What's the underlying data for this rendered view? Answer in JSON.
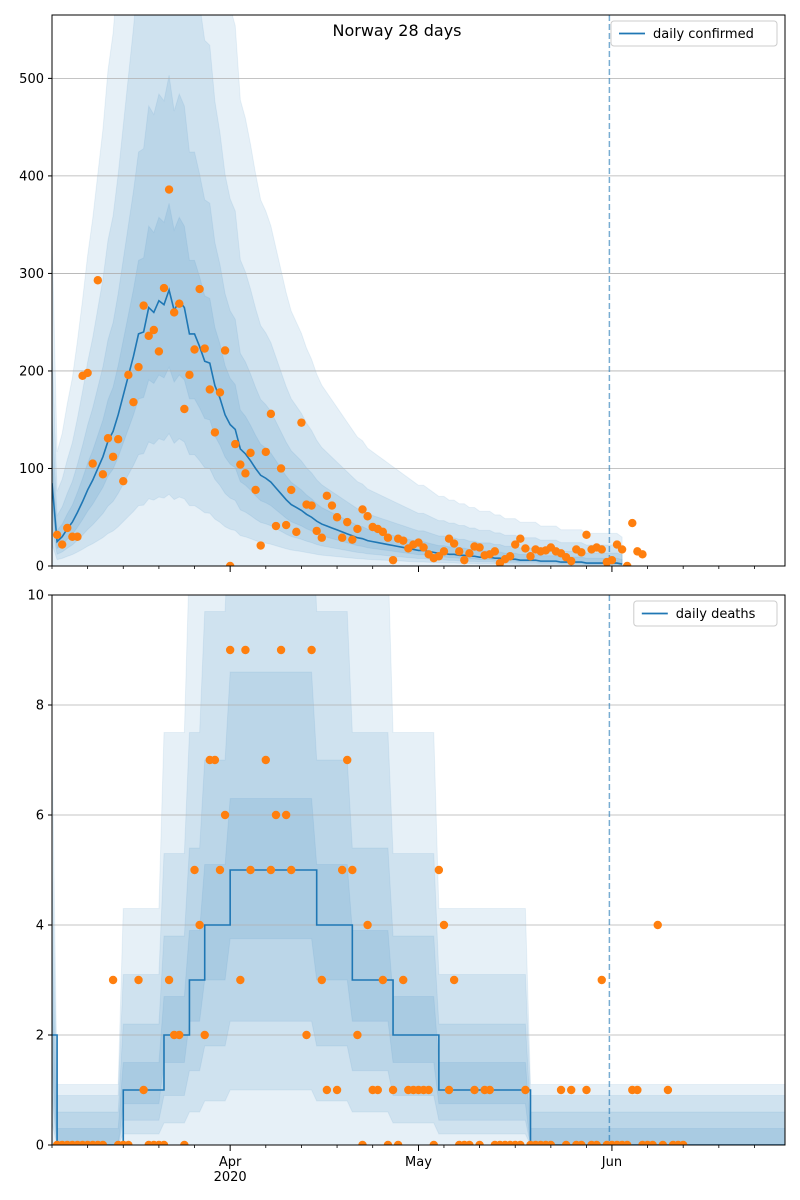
{
  "chart_data": [
    {
      "type": "line",
      "title": "Norway 28 days",
      "xlabel": "",
      "ylabel": "",
      "x_range": [
        0,
        144
      ],
      "ylim": [
        0,
        565
      ],
      "y_ticks": [
        0,
        100,
        200,
        300,
        400,
        500
      ],
      "x_ticks": [
        {
          "x": 35,
          "label": "Apr",
          "sublabel": "2020"
        },
        {
          "x": 72,
          "label": "May",
          "sublabel": ""
        },
        {
          "x": 110,
          "label": "Jun",
          "sublabel": ""
        }
      ],
      "minor_x_ticks": [
        0,
        7,
        14,
        21,
        28,
        42,
        49,
        56,
        63,
        77,
        84,
        91,
        98,
        105,
        117,
        124,
        131,
        138
      ],
      "grid": "horizontal",
      "legend": "top-right",
      "forecast_start_x": 109.5,
      "colors": {
        "line": "#1f77b4",
        "observed": "#ff7f0e",
        "band": "#1f77b4",
        "vline": "#1f77b4"
      },
      "series": [
        {
          "name": "daily confirmed",
          "kind": "line",
          "values": [
            85,
            25,
            30,
            38,
            45,
            55,
            66,
            78,
            88,
            100,
            112,
            128,
            138,
            155,
            175,
            195,
            215,
            238,
            240,
            265,
            260,
            272,
            268,
            283,
            262,
            272,
            265,
            238,
            238,
            225,
            210,
            208,
            185,
            172,
            155,
            145,
            140,
            120,
            115,
            108,
            100,
            93,
            90,
            86,
            80,
            74,
            68,
            63,
            60,
            57,
            53,
            50,
            46,
            43,
            41,
            39,
            37,
            35,
            33,
            31,
            29,
            28,
            26,
            25,
            24,
            23,
            22,
            21,
            20,
            19,
            18,
            17,
            16,
            16,
            15,
            14,
            13,
            13,
            12,
            12,
            11,
            11,
            10,
            10,
            9,
            9,
            9,
            8,
            8,
            7,
            7,
            7,
            6,
            6,
            6,
            6,
            5,
            5,
            5,
            5,
            4,
            4,
            4,
            4,
            4,
            3,
            3,
            3,
            3,
            3,
            3,
            3,
            2
          ]
        },
        {
          "name": "observed",
          "kind": "scatter",
          "values": [
            32,
            22,
            39,
            30,
            30,
            195,
            198,
            105,
            293,
            94,
            131,
            112,
            130,
            87,
            196,
            168,
            204,
            267,
            236,
            242,
            220,
            285,
            386,
            260,
            269,
            161,
            196,
            222,
            284,
            223,
            181,
            137,
            178,
            221,
            0,
            125,
            104,
            95,
            116,
            78,
            21,
            117,
            156,
            41,
            100,
            42,
            78,
            35,
            147,
            63,
            62,
            36,
            29,
            72,
            62,
            50,
            29,
            45,
            27,
            38,
            58,
            51,
            40,
            38,
            35,
            29,
            6,
            28,
            26,
            18,
            22,
            24,
            19,
            12,
            8,
            10,
            15,
            28,
            23,
            15,
            6,
            13,
            20,
            19,
            11,
            12,
            15,
            3,
            7,
            10,
            22,
            28,
            18,
            10,
            17,
            15,
            16,
            19,
            15,
            13,
            9,
            5,
            17,
            14,
            32,
            17,
            19,
            17,
            4,
            6,
            22,
            17,
            0,
            44,
            15,
            12
          ]
        }
      ]
    },
    {
      "type": "line",
      "title": "",
      "xlabel": "",
      "ylabel": "",
      "x_range": [
        0,
        144
      ],
      "ylim": [
        0,
        10
      ],
      "y_ticks": [
        0,
        2,
        4,
        6,
        8,
        10
      ],
      "x_ticks": [
        {
          "x": 35,
          "label": "Apr",
          "sublabel": "2020"
        },
        {
          "x": 72,
          "label": "May",
          "sublabel": ""
        },
        {
          "x": 110,
          "label": "Jun",
          "sublabel": ""
        }
      ],
      "minor_x_ticks": [
        0,
        7,
        14,
        21,
        28,
        42,
        49,
        56,
        63,
        77,
        84,
        91,
        98,
        105,
        117,
        124,
        131,
        138
      ],
      "grid": "horizontal",
      "legend": "top-right",
      "forecast_start_x": 109.5,
      "colors": {
        "line": "#1f77b4",
        "observed": "#ff7f0e",
        "band": "#1f77b4",
        "vline": "#1f77b4"
      },
      "series": [
        {
          "name": "daily deaths",
          "kind": "step",
          "steps": [
            [
              0,
              2
            ],
            [
              1,
              0
            ],
            [
              14,
              1
            ],
            [
              22,
              2
            ],
            [
              27,
              3
            ],
            [
              30,
              4
            ],
            [
              35,
              5
            ],
            [
              52,
              4
            ],
            [
              59,
              3
            ],
            [
              67,
              2
            ],
            [
              76,
              1
            ],
            [
              94,
              0
            ],
            [
              144,
              0
            ]
          ]
        },
        {
          "name": "observed",
          "kind": "scatter",
          "points": [
            [
              1,
              0
            ],
            [
              2,
              0
            ],
            [
              3,
              0
            ],
            [
              4,
              0
            ],
            [
              5,
              0
            ],
            [
              6,
              0
            ],
            [
              7,
              0
            ],
            [
              8,
              0
            ],
            [
              9,
              0
            ],
            [
              10,
              0
            ],
            [
              12,
              3
            ],
            [
              13,
              0
            ],
            [
              14,
              0
            ],
            [
              15,
              0
            ],
            [
              17,
              3
            ],
            [
              18,
              1
            ],
            [
              19,
              0
            ],
            [
              20,
              0
            ],
            [
              21,
              0
            ],
            [
              22,
              0
            ],
            [
              23,
              3
            ],
            [
              24,
              2
            ],
            [
              25,
              2
            ],
            [
              26,
              0
            ],
            [
              28,
              5
            ],
            [
              29,
              4
            ],
            [
              30,
              2
            ],
            [
              31,
              7
            ],
            [
              32,
              7
            ],
            [
              33,
              5
            ],
            [
              34,
              6
            ],
            [
              35,
              9
            ],
            [
              37,
              3
            ],
            [
              38,
              9
            ],
            [
              39,
              5
            ],
            [
              42,
              7
            ],
            [
              43,
              5
            ],
            [
              44,
              6
            ],
            [
              45,
              9
            ],
            [
              46,
              6
            ],
            [
              47,
              5
            ],
            [
              50,
              2
            ],
            [
              51,
              9
            ],
            [
              53,
              3
            ],
            [
              54,
              1
            ],
            [
              56,
              1
            ],
            [
              57,
              5
            ],
            [
              58,
              7
            ],
            [
              59,
              5
            ],
            [
              60,
              2
            ],
            [
              61,
              0
            ],
            [
              62,
              4
            ],
            [
              63,
              1
            ],
            [
              64,
              1
            ],
            [
              65,
              3
            ],
            [
              66,
              0
            ],
            [
              67,
              1
            ],
            [
              68,
              0
            ],
            [
              69,
              3
            ],
            [
              70,
              1
            ],
            [
              71,
              1
            ],
            [
              72,
              1
            ],
            [
              73,
              1
            ],
            [
              74,
              1
            ],
            [
              75,
              0
            ],
            [
              76,
              5
            ],
            [
              77,
              4
            ],
            [
              78,
              1
            ],
            [
              79,
              3
            ],
            [
              80,
              0
            ],
            [
              81,
              0
            ],
            [
              82,
              0
            ],
            [
              83,
              1
            ],
            [
              84,
              0
            ],
            [
              85,
              1
            ],
            [
              86,
              1
            ],
            [
              87,
              0
            ],
            [
              88,
              0
            ],
            [
              89,
              0
            ],
            [
              90,
              0
            ],
            [
              91,
              0
            ],
            [
              92,
              0
            ],
            [
              93,
              1
            ],
            [
              94,
              0
            ],
            [
              95,
              0
            ],
            [
              96,
              0
            ],
            [
              97,
              0
            ],
            [
              98,
              0
            ],
            [
              100,
              1
            ],
            [
              101,
              0
            ],
            [
              102,
              1
            ],
            [
              103,
              0
            ],
            [
              104,
              0
            ],
            [
              105,
              1
            ],
            [
              106,
              0
            ],
            [
              107,
              0
            ],
            [
              108,
              3
            ],
            [
              109,
              0
            ],
            [
              110,
              0
            ],
            [
              111,
              0
            ],
            [
              112,
              0
            ],
            [
              113,
              0
            ],
            [
              114,
              1
            ],
            [
              115,
              1
            ],
            [
              116,
              0
            ],
            [
              117,
              0
            ],
            [
              118,
              0
            ],
            [
              119,
              4
            ],
            [
              120,
              0
            ],
            [
              121,
              1
            ],
            [
              122,
              0
            ],
            [
              123,
              0
            ],
            [
              124,
              0
            ]
          ]
        }
      ]
    }
  ]
}
